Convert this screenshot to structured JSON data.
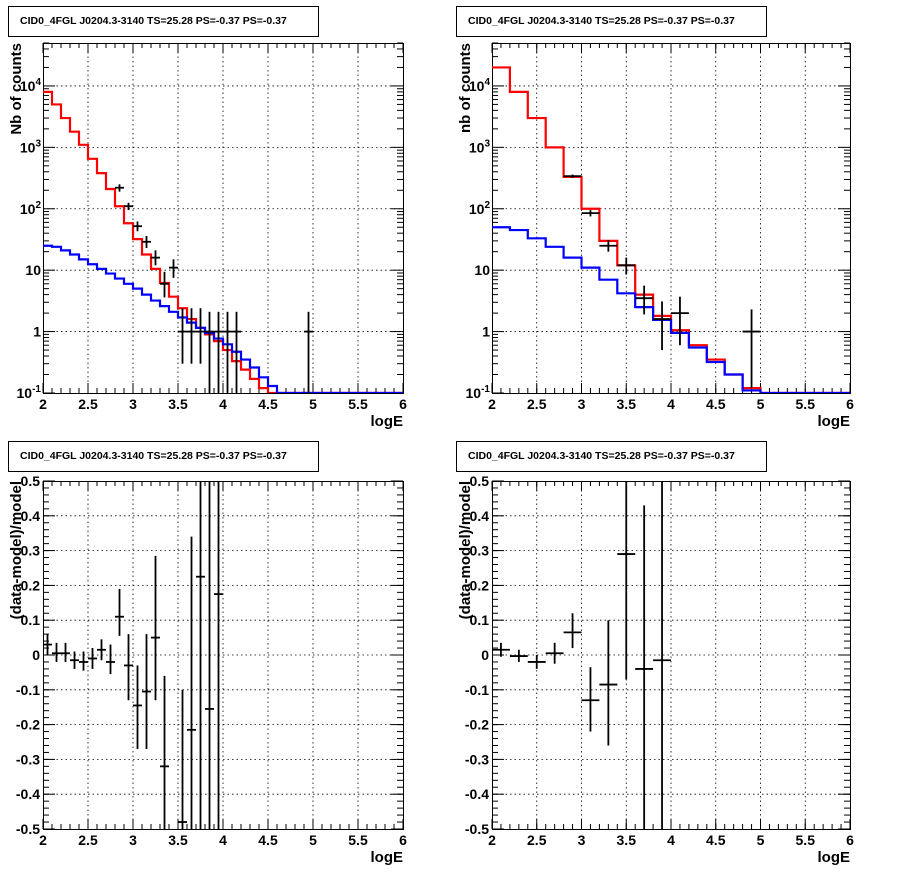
{
  "panel_title": "CID0_4FGL J0204.3-3140 TS=25.28 PS=-0.37 PS=-0.37",
  "chart_data": [
    {
      "type": "line",
      "position": "top-left",
      "title": "CID0_4FGL J0204.3-3140 TS=25.28 PS=-0.37 PS=-0.37",
      "xlabel": "logE",
      "ylabel": "Nb of counts",
      "xlim": [
        2,
        6
      ],
      "ylim": [
        0.1,
        50000
      ],
      "yscale": "log",
      "xticks": [
        "2",
        "2.5",
        "3",
        "3.5",
        "4",
        "4.5",
        "5",
        "5.5",
        "6"
      ],
      "yticks": [
        "10^-1",
        "1",
        "10",
        "10^2",
        "10^3",
        "10^4"
      ],
      "grid": true,
      "bin_edges": [
        2.0,
        2.1,
        2.2,
        2.3,
        2.4,
        2.5,
        2.6,
        2.7,
        2.8,
        2.9,
        3.0,
        3.1,
        3.2,
        3.3,
        3.4,
        3.5,
        3.6,
        3.7,
        3.8,
        3.9,
        4.0,
        4.1,
        4.2,
        4.3,
        4.4,
        4.5,
        4.6,
        4.7,
        4.8,
        4.9,
        5.0,
        5.1,
        5.2,
        5.3,
        5.4,
        5.5,
        5.6,
        5.7,
        5.8,
        5.9,
        6.0
      ],
      "series": [
        {
          "color": "#ff0000",
          "style": "step",
          "values": [
            8000,
            5000,
            3000,
            1800,
            1100,
            650,
            380,
            210,
            110,
            58,
            32,
            18,
            10.5,
            6.2,
            3.7,
            2.4,
            1.6,
            1.15,
            0.9,
            0.7,
            0.5,
            0.33,
            0.24,
            0.17,
            0.12,
            0.1,
            0.1,
            0.1,
            0.1,
            0.1,
            0.1,
            0.1,
            0.1,
            0.1,
            0.1,
            0.1,
            0.1,
            0.1,
            0.1,
            0.1
          ]
        },
        {
          "color": "#0000ff",
          "style": "step",
          "values": [
            25,
            24,
            21,
            18,
            15,
            12.5,
            10.5,
            8.8,
            7.3,
            6,
            5,
            4,
            3.2,
            2.6,
            2.1,
            1.7,
            1.4,
            1.15,
            0.95,
            0.77,
            0.62,
            0.47,
            0.35,
            0.26,
            0.18,
            0.13,
            0.1,
            0.1,
            0.1,
            0.1,
            0.1,
            0.1,
            0.1,
            0.1,
            0.1,
            0.1,
            0.1,
            0.1,
            0.1,
            0.1
          ]
        },
        {
          "color": "#000000",
          "style": "errorbar",
          "points": [
            {
              "x": 2.85,
              "y": 220,
              "lo": 190,
              "hi": 250
            },
            {
              "x": 2.95,
              "y": 110,
              "lo": 95,
              "hi": 125
            },
            {
              "x": 3.05,
              "y": 52,
              "lo": 43,
              "hi": 62
            },
            {
              "x": 3.15,
              "y": 29,
              "lo": 23,
              "hi": 36
            },
            {
              "x": 3.25,
              "y": 16,
              "lo": 12,
              "hi": 21
            },
            {
              "x": 3.35,
              "y": 6,
              "lo": 3.6,
              "hi": 9.4
            },
            {
              "x": 3.45,
              "y": 11,
              "lo": 7.5,
              "hi": 15
            },
            {
              "x": 3.55,
              "y": 1,
              "lo": 0.3,
              "hi": 2.4
            },
            {
              "x": 3.65,
              "y": 1,
              "lo": 0.3,
              "hi": 2.4
            },
            {
              "x": 3.75,
              "y": 1,
              "lo": 0.3,
              "hi": 2.4
            },
            {
              "x": 3.85,
              "y": 1,
              "lo": 0.1,
              "hi": 2.1
            },
            {
              "x": 3.95,
              "y": 1,
              "lo": 0.1,
              "hi": 2.1
            },
            {
              "x": 4.05,
              "y": 1,
              "lo": 0.1,
              "hi": 2.1
            },
            {
              "x": 4.15,
              "y": 1,
              "lo": 0.1,
              "hi": 2.1
            },
            {
              "x": 4.95,
              "y": 1,
              "lo": 0.1,
              "hi": 2.1
            }
          ]
        }
      ]
    },
    {
      "type": "line",
      "position": "top-right",
      "title": "CID0_4FGL J0204.3-3140 TS=25.28 PS=-0.37 PS=-0.37",
      "xlabel": "logE",
      "ylabel": "nb of counts",
      "xlim": [
        2,
        6
      ],
      "ylim": [
        0.1,
        50000
      ],
      "yscale": "log",
      "xticks": [
        "2",
        "2.5",
        "3",
        "3.5",
        "4",
        "4.5",
        "5",
        "5.5",
        "6"
      ],
      "yticks": [
        "10^-1",
        "1",
        "10",
        "10^2",
        "10^3",
        "10^4"
      ],
      "grid": true,
      "bin_edges": [
        2.0,
        2.2,
        2.4,
        2.6,
        2.8,
        3.0,
        3.2,
        3.4,
        3.6,
        3.8,
        4.0,
        4.2,
        4.4,
        4.6,
        4.8,
        5.0,
        5.2,
        5.4,
        5.6,
        5.8,
        6.0
      ],
      "series": [
        {
          "color": "#ff0000",
          "style": "step",
          "values": [
            20000,
            8000,
            3000,
            1000,
            330,
            100,
            30,
            12,
            4,
            1.8,
            1.05,
            0.6,
            0.35,
            0.2,
            0.12,
            0.1,
            0.1,
            0.1,
            0.1,
            0.1
          ]
        },
        {
          "color": "#0000ff",
          "style": "step",
          "values": [
            50,
            45,
            33,
            24,
            16,
            11,
            7,
            4.2,
            2.5,
            1.55,
            0.95,
            0.55,
            0.32,
            0.2,
            0.11,
            0.1,
            0.1,
            0.1,
            0.1,
            0.1
          ]
        },
        {
          "color": "#000000",
          "style": "errorbar",
          "points": [
            {
              "x": 2.9,
              "y": 340,
              "lo": 320,
              "hi": 360
            },
            {
              "x": 3.1,
              "y": 85,
              "lo": 75,
              "hi": 95
            },
            {
              "x": 3.3,
              "y": 25,
              "lo": 20,
              "hi": 31
            },
            {
              "x": 3.5,
              "y": 12,
              "lo": 8.5,
              "hi": 16
            },
            {
              "x": 3.7,
              "y": 3.5,
              "lo": 1.9,
              "hi": 5.6
            },
            {
              "x": 3.9,
              "y": 1.6,
              "lo": 0.5,
              "hi": 3.1
            },
            {
              "x": 4.1,
              "y": 2,
              "lo": 0.6,
              "hi": 3.7
            },
            {
              "x": 4.9,
              "y": 1,
              "lo": 0.12,
              "hi": 2.3
            }
          ]
        }
      ]
    },
    {
      "type": "scatter",
      "position": "bottom-left",
      "title": "CID0_4FGL J0204.3-3140 TS=25.28 PS=-0.37 PS=-0.37",
      "xlabel": "logE",
      "ylabel": "(data-model)/model",
      "xlim": [
        2,
        6
      ],
      "ylim": [
        -0.5,
        0.5
      ],
      "xticks": [
        "2",
        "2.5",
        "3",
        "3.5",
        "4",
        "4.5",
        "5",
        "5.5",
        "6"
      ],
      "yticks": [
        "-0.5",
        "-0.4",
        "-0.3",
        "-0.2",
        "-0.1",
        "0",
        "0.1",
        "0.2",
        "0.3",
        "0.4",
        "0.5"
      ],
      "grid": true,
      "bin_width": 0.1,
      "series": [
        {
          "color": "#000000",
          "style": "errorbar",
          "points": [
            {
              "x": 2.05,
              "y": 0.03,
              "lo": 0.0,
              "hi": 0.06
            },
            {
              "x": 2.15,
              "y": 0.005,
              "lo": -0.02,
              "hi": 0.035
            },
            {
              "x": 2.25,
              "y": 0.005,
              "lo": -0.02,
              "hi": 0.035
            },
            {
              "x": 2.35,
              "y": -0.015,
              "lo": -0.04,
              "hi": 0.01
            },
            {
              "x": 2.45,
              "y": -0.02,
              "lo": -0.045,
              "hi": 0.01
            },
            {
              "x": 2.55,
              "y": -0.01,
              "lo": -0.04,
              "hi": 0.02
            },
            {
              "x": 2.65,
              "y": 0.015,
              "lo": -0.015,
              "hi": 0.045
            },
            {
              "x": 2.75,
              "y": -0.02,
              "lo": -0.055,
              "hi": 0.03
            },
            {
              "x": 2.85,
              "y": 0.11,
              "lo": 0.055,
              "hi": 0.19
            },
            {
              "x": 2.95,
              "y": -0.03,
              "lo": -0.13,
              "hi": 0.06
            },
            {
              "x": 3.05,
              "y": -0.145,
              "lo": -0.27,
              "hi": -0.03
            },
            {
              "x": 3.15,
              "y": -0.105,
              "lo": -0.27,
              "hi": 0.06
            },
            {
              "x": 3.25,
              "y": 0.05,
              "lo": -0.13,
              "hi": 0.285
            },
            {
              "x": 3.35,
              "y": -0.32,
              "lo": -0.5,
              "hi": -0.06
            },
            {
              "x": 3.55,
              "y": -0.48,
              "lo": -0.5,
              "hi": -0.1
            },
            {
              "x": 3.65,
              "y": -0.215,
              "lo": -0.5,
              "hi": 0.34
            },
            {
              "x": 3.75,
              "y": 0.225,
              "lo": -0.5,
              "hi": 0.5
            },
            {
              "x": 3.85,
              "y": -0.155,
              "lo": -0.5,
              "hi": 0.5
            },
            {
              "x": 3.95,
              "y": 0.175,
              "lo": -0.5,
              "hi": 0.5
            }
          ]
        }
      ]
    },
    {
      "type": "scatter",
      "position": "bottom-right",
      "title": "CID0_4FGL J0204.3-3140 TS=25.28 PS=-0.37 PS=-0.37",
      "xlabel": "logE",
      "ylabel": "(data-model)/model",
      "xlim": [
        2,
        6
      ],
      "ylim": [
        -0.5,
        0.5
      ],
      "xticks": [
        "2",
        "2.5",
        "3",
        "3.5",
        "4",
        "4.5",
        "5",
        "5.5",
        "6"
      ],
      "yticks": [
        "-0.5",
        "-0.4",
        "-0.3",
        "-0.2",
        "-0.1",
        "0",
        "0.1",
        "0.2",
        "0.3",
        "0.4",
        "0.5"
      ],
      "grid": true,
      "bin_width": 0.2,
      "series": [
        {
          "color": "#000000",
          "style": "errorbar",
          "points": [
            {
              "x": 2.1,
              "y": 0.015,
              "lo": -0.005,
              "hi": 0.035
            },
            {
              "x": 2.3,
              "y": -0.003,
              "lo": -0.02,
              "hi": 0.015
            },
            {
              "x": 2.5,
              "y": -0.02,
              "lo": -0.04,
              "hi": 0.0
            },
            {
              "x": 2.7,
              "y": 0.005,
              "lo": -0.025,
              "hi": 0.035
            },
            {
              "x": 2.9,
              "y": 0.065,
              "lo": 0.02,
              "hi": 0.12
            },
            {
              "x": 3.1,
              "y": -0.13,
              "lo": -0.22,
              "hi": -0.035
            },
            {
              "x": 3.3,
              "y": -0.085,
              "lo": -0.26,
              "hi": 0.1
            },
            {
              "x": 3.5,
              "y": 0.29,
              "lo": -0.07,
              "hi": 0.5
            },
            {
              "x": 3.7,
              "y": -0.04,
              "lo": -0.5,
              "hi": 0.43
            },
            {
              "x": 3.9,
              "y": -0.015,
              "lo": -0.5,
              "hi": 0.5
            }
          ]
        }
      ]
    }
  ]
}
